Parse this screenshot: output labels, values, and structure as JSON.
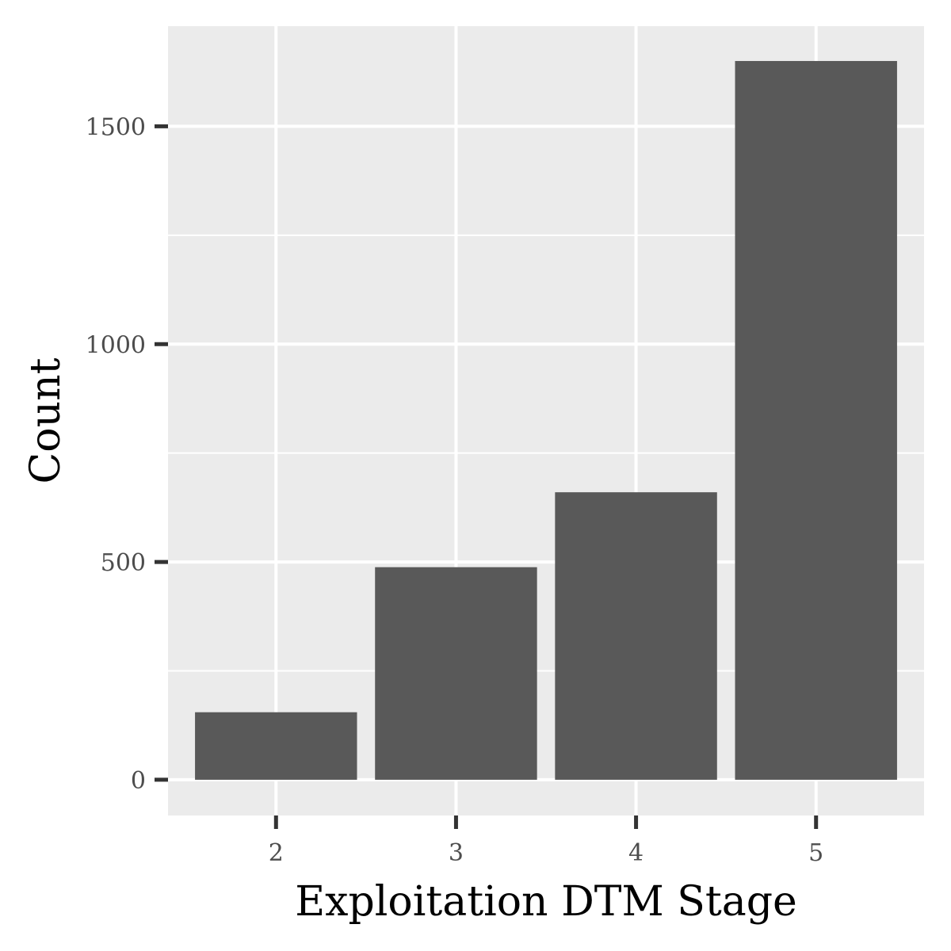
{
  "chart_data": {
    "type": "bar",
    "title": "",
    "xlabel": "Exploitation DTM Stage",
    "ylabel": "Count",
    "categories": [
      "2",
      "3",
      "4",
      "5"
    ],
    "values": [
      155,
      488,
      660,
      1650
    ],
    "ylim": [
      -82,
      1730
    ],
    "yticks": [
      0,
      500,
      1000,
      1500
    ],
    "yticks_labels": [
      "0",
      "500",
      "1000",
      "1500"
    ],
    "grid": true,
    "legend": "none",
    "colors": {
      "panel": "#ebebeb",
      "bar": "#595959",
      "grid": "#ffffff",
      "tick": "#333333"
    }
  }
}
